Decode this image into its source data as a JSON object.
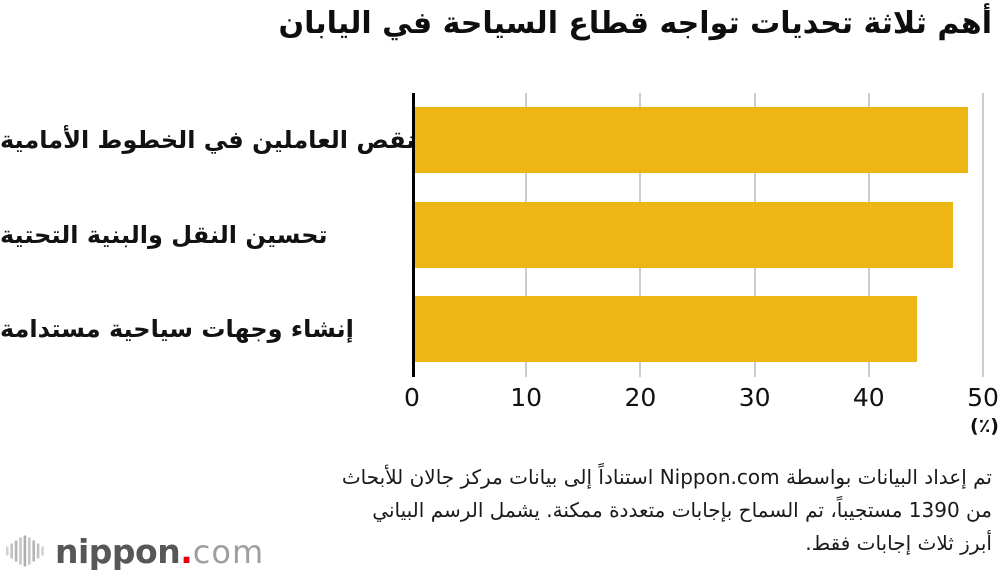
{
  "title": "أهم ثلاثة تحديات تواجه قطاع السياحة في اليابان",
  "chart_data": {
    "type": "bar",
    "orientation": "horizontal",
    "categories": [
      "نقص العاملين في الخطوط الأمامية",
      "تحسين النقل والبنية التحتية",
      "إنشاء وجهات سياحية مستدامة"
    ],
    "values": [
      48.7,
      47.4,
      44.2
    ],
    "x_ticks": [
      "0",
      "10",
      "20",
      "30",
      "40",
      "50"
    ],
    "xlim": [
      0,
      50
    ],
    "unit_label": "(٪)",
    "grid": true,
    "legend": "none",
    "bar_color": "#EEB615",
    "grid_color": "#cccccc",
    "axis_color": "#000000"
  },
  "footer": {
    "line1": "تم إعداد البيانات بواسطة Nippon.com استناداً إلى بيانات مركز جالان للأبحاث",
    "line2": "من 1390 مستجيباً، تم السماح بإجابات متعددة ممكنة. يشمل الرسم البياني",
    "line3": "أبرز ثلاث إجابات فقط."
  },
  "logo": {
    "name": "nippon",
    "dot": ".",
    "tld": "com",
    "name_color": "#575757",
    "dot_color": "#e60012",
    "tld_color": "#9f9f9f",
    "icon": "soundwave-bars-icon"
  }
}
